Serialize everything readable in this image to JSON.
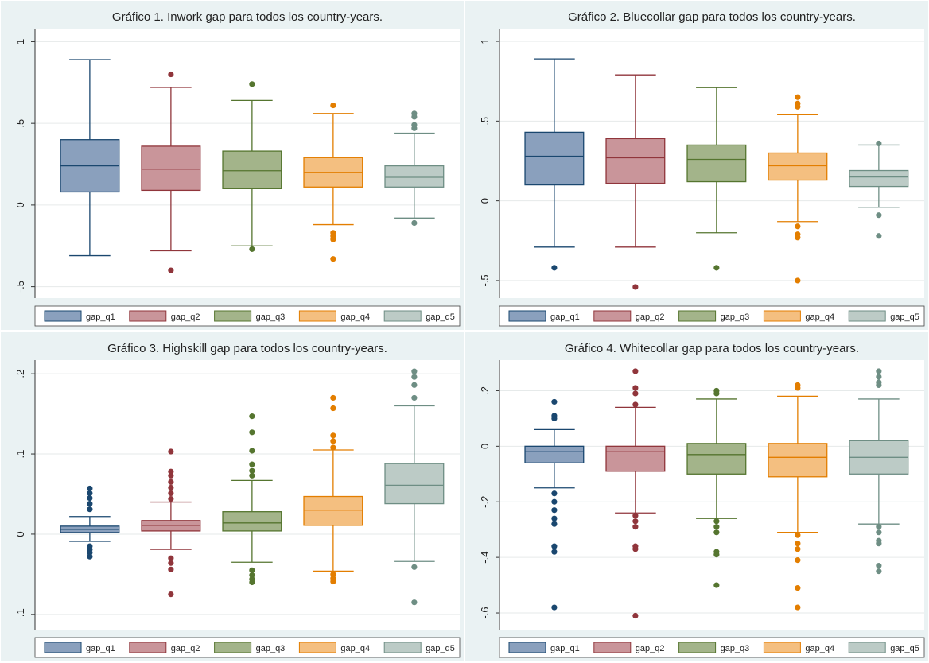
{
  "chart_data": [
    {
      "type": "box",
      "title": "Gráfico 1. Inwork gap para todos los country-years.",
      "ylim": [
        -0.57,
        1.08
      ],
      "yticks": [
        {
          "value": -0.5,
          "label": "-.5"
        },
        0,
        {
          "value": 0.5,
          "label": ".5"
        },
        1
      ],
      "grid": true,
      "series": [
        {
          "name": "gap_q1",
          "color": "#1a476f",
          "fill": "#8aa0bd",
          "whisker_low": -0.31,
          "q1": 0.08,
          "median": 0.24,
          "q3": 0.4,
          "whisker_high": 0.89,
          "outliers": []
        },
        {
          "name": "gap_q2",
          "color": "#90353b",
          "fill": "#c9959a",
          "whisker_low": -0.28,
          "q1": 0.09,
          "median": 0.22,
          "q3": 0.36,
          "whisker_high": 0.72,
          "outliers": [
            0.8,
            -0.4
          ]
        },
        {
          "name": "gap_q3",
          "color": "#55752f",
          "fill": "#a3b48a",
          "whisker_low": -0.25,
          "q1": 0.1,
          "median": 0.21,
          "q3": 0.33,
          "whisker_high": 0.64,
          "outliers": [
            0.74,
            -0.27
          ]
        },
        {
          "name": "gap_q4",
          "color": "#e37e00",
          "fill": "#f4bf80",
          "whisker_low": -0.12,
          "q1": 0.11,
          "median": 0.2,
          "q3": 0.29,
          "whisker_high": 0.56,
          "outliers": [
            0.61,
            -0.17,
            -0.19,
            -0.21,
            -0.33
          ]
        },
        {
          "name": "gap_q5",
          "color": "#6e8e84",
          "fill": "#bccbc6",
          "whisker_low": -0.08,
          "q1": 0.11,
          "median": 0.17,
          "q3": 0.24,
          "whisker_high": 0.44,
          "outliers": [
            0.56,
            0.54,
            0.49,
            0.47,
            -0.11
          ]
        }
      ]
    },
    {
      "type": "box",
      "title": "Gráfico 2. Bluecollar gap para todos los country-years.",
      "ylim": [
        -0.61,
        1.08
      ],
      "yticks": [
        {
          "value": -0.5,
          "label": "-.5"
        },
        0,
        {
          "value": 0.5,
          "label": ".5"
        },
        1
      ],
      "grid": true,
      "series": [
        {
          "name": "gap_q1",
          "color": "#1a476f",
          "fill": "#8aa0bd",
          "whisker_low": -0.29,
          "q1": 0.1,
          "median": 0.28,
          "q3": 0.43,
          "whisker_high": 0.89,
          "outliers": [
            -0.42
          ]
        },
        {
          "name": "gap_q2",
          "color": "#90353b",
          "fill": "#c9959a",
          "whisker_low": -0.29,
          "q1": 0.11,
          "median": 0.27,
          "q3": 0.39,
          "whisker_high": 0.79,
          "outliers": [
            -0.54
          ]
        },
        {
          "name": "gap_q3",
          "color": "#55752f",
          "fill": "#a3b48a",
          "whisker_low": -0.2,
          "q1": 0.12,
          "median": 0.26,
          "q3": 0.35,
          "whisker_high": 0.71,
          "outliers": [
            -0.42
          ]
        },
        {
          "name": "gap_q4",
          "color": "#e37e00",
          "fill": "#f4bf80",
          "whisker_low": -0.13,
          "q1": 0.13,
          "median": 0.22,
          "q3": 0.3,
          "whisker_high": 0.54,
          "outliers": [
            0.65,
            0.61,
            0.59,
            -0.16,
            -0.21,
            -0.23,
            -0.5
          ]
        },
        {
          "name": "gap_q5",
          "color": "#6e8e84",
          "fill": "#bccbc6",
          "whisker_low": -0.04,
          "q1": 0.09,
          "median": 0.15,
          "q3": 0.19,
          "whisker_high": 0.35,
          "outliers": [
            0.36,
            -0.09,
            -0.22
          ]
        }
      ]
    },
    {
      "type": "box",
      "title": "Gráfico 3. Highskill gap para todos los country-years.",
      "ylim": [
        -0.119,
        0.217
      ],
      "yticks": [
        {
          "value": -0.1,
          "label": "-.1"
        },
        0,
        {
          "value": 0.1,
          "label": ".1"
        },
        {
          "value": 0.2,
          "label": ".2"
        }
      ],
      "grid": true,
      "series": [
        {
          "name": "gap_q1",
          "color": "#1a476f",
          "fill": "#8aa0bd",
          "whisker_low": -0.009,
          "q1": 0.002,
          "median": 0.006,
          "q3": 0.01,
          "whisker_high": 0.022,
          "outliers": [
            0.057,
            0.051,
            0.045,
            0.038,
            0.031,
            -0.015,
            -0.019,
            -0.023,
            -0.028
          ]
        },
        {
          "name": "gap_q2",
          "color": "#90353b",
          "fill": "#c9959a",
          "whisker_low": -0.019,
          "q1": 0.004,
          "median": 0.011,
          "q3": 0.017,
          "whisker_high": 0.04,
          "outliers": [
            0.103,
            0.078,
            0.073,
            0.065,
            0.058,
            0.051,
            0.044,
            -0.03,
            -0.036,
            -0.044,
            -0.075
          ]
        },
        {
          "name": "gap_q3",
          "color": "#55752f",
          "fill": "#a3b48a",
          "whisker_low": -0.035,
          "q1": 0.004,
          "median": 0.014,
          "q3": 0.028,
          "whisker_high": 0.067,
          "outliers": [
            0.147,
            0.127,
            0.104,
            0.087,
            0.079,
            0.073,
            -0.045,
            -0.051,
            -0.056,
            -0.06
          ]
        },
        {
          "name": "gap_q4",
          "color": "#e37e00",
          "fill": "#f4bf80",
          "whisker_low": -0.046,
          "q1": 0.011,
          "median": 0.03,
          "q3": 0.047,
          "whisker_high": 0.105,
          "outliers": [
            0.17,
            0.157,
            0.123,
            0.116,
            0.108,
            -0.05,
            -0.055,
            -0.059
          ]
        },
        {
          "name": "gap_q5",
          "color": "#6e8e84",
          "fill": "#bccbc6",
          "whisker_low": -0.034,
          "q1": 0.038,
          "median": 0.061,
          "q3": 0.088,
          "whisker_high": 0.16,
          "outliers": [
            0.203,
            0.196,
            0.186,
            0.17,
            -0.041,
            -0.085
          ]
        }
      ]
    },
    {
      "type": "box",
      "title": "Gráfico 4. Whitecollar gap para todos los country-years.",
      "ylim": [
        -0.66,
        0.31
      ],
      "yticks": [
        {
          "value": -0.6,
          "label": "-.6"
        },
        {
          "value": -0.4,
          "label": "-.4"
        },
        {
          "value": -0.2,
          "label": "-.2"
        },
        0,
        {
          "value": 0.2,
          "label": ".2"
        }
      ],
      "grid": true,
      "series": [
        {
          "name": "gap_q1",
          "color": "#1a476f",
          "fill": "#8aa0bd",
          "whisker_low": -0.15,
          "q1": -0.06,
          "median": -0.02,
          "q3": 0.0,
          "whisker_high": 0.06,
          "outliers": [
            0.16,
            0.11,
            0.1,
            -0.17,
            -0.2,
            -0.23,
            -0.26,
            -0.28,
            -0.36,
            -0.38,
            -0.58
          ]
        },
        {
          "name": "gap_q2",
          "color": "#90353b",
          "fill": "#c9959a",
          "whisker_low": -0.24,
          "q1": -0.09,
          "median": -0.02,
          "q3": 0.0,
          "whisker_high": 0.14,
          "outliers": [
            0.27,
            0.21,
            0.19,
            0.15,
            -0.25,
            -0.27,
            -0.29,
            -0.36,
            -0.37,
            -0.61
          ]
        },
        {
          "name": "gap_q3",
          "color": "#55752f",
          "fill": "#a3b48a",
          "whisker_low": -0.26,
          "q1": -0.1,
          "median": -0.03,
          "q3": 0.01,
          "whisker_high": 0.17,
          "outliers": [
            0.2,
            0.19,
            -0.27,
            -0.29,
            -0.31,
            -0.38,
            -0.39,
            -0.5
          ]
        },
        {
          "name": "gap_q4",
          "color": "#e37e00",
          "fill": "#f4bf80",
          "whisker_low": -0.31,
          "q1": -0.11,
          "median": -0.04,
          "q3": 0.01,
          "whisker_high": 0.18,
          "outliers": [
            0.22,
            0.21,
            -0.32,
            -0.35,
            -0.37,
            -0.41,
            -0.51,
            -0.58
          ]
        },
        {
          "name": "gap_q5",
          "color": "#6e8e84",
          "fill": "#bccbc6",
          "whisker_low": -0.28,
          "q1": -0.1,
          "median": -0.04,
          "q3": 0.02,
          "whisker_high": 0.17,
          "outliers": [
            0.27,
            0.25,
            0.23,
            0.22,
            -0.29,
            -0.31,
            -0.34,
            -0.35,
            -0.43,
            -0.45
          ]
        }
      ]
    }
  ]
}
